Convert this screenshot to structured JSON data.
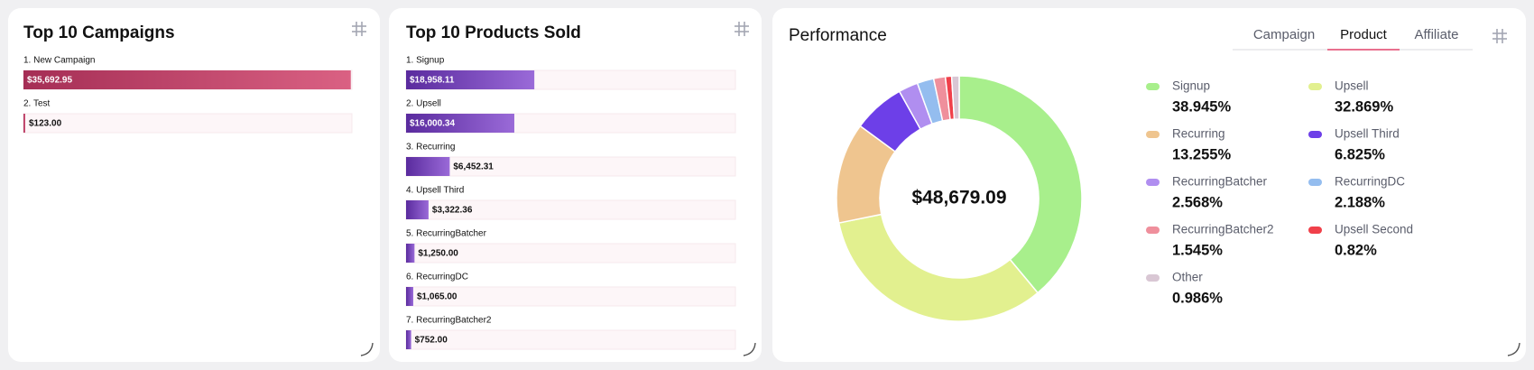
{
  "campaigns": {
    "title": "Top 10 Campaigns",
    "categories": [
      "1. New Campaign",
      "2. Test"
    ],
    "values": [
      35692.95,
      123.0
    ],
    "value_labels": [
      "$35,692.95",
      "$123.00"
    ]
  },
  "products": {
    "title": "Top 10 Products Sold",
    "categories": [
      "1. Signup",
      "2. Upsell",
      "3. Recurring",
      "4. Upsell Third",
      "5. RecurringBatcher",
      "6. RecurringDC",
      "7. RecurringBatcher2"
    ],
    "values": [
      18958.11,
      16000.34,
      6452.31,
      3322.36,
      1250.0,
      1065.0,
      752.0
    ],
    "value_labels": [
      "$18,958.11",
      "$16,000.34",
      "$6,452.31",
      "$3,322.36",
      "$1,250.00",
      "$1,065.00",
      "$752.00"
    ]
  },
  "performance": {
    "type": "donut",
    "title": "Performance",
    "tabs": [
      "Campaign",
      "Product",
      "Affiliate"
    ],
    "active_tab": 1,
    "total": 48679.09,
    "total_label": "$48,679.09",
    "series": [
      {
        "name": "Signup",
        "color": "#a8ef8c",
        "value": 38.945,
        "value_label": "38.945%"
      },
      {
        "name": "Upsell",
        "color": "#e2f08f",
        "value": 32.869,
        "value_label": "32.869%"
      },
      {
        "name": "Recurring",
        "color": "#efc58f",
        "value": 13.255,
        "value_label": "13.255%"
      },
      {
        "name": "Upsell Third",
        "color": "#6d3fe8",
        "value": 6.825,
        "value_label": "6.825%"
      },
      {
        "name": "RecurringBatcher",
        "color": "#b08ef0",
        "value": 2.568,
        "value_label": "2.568%"
      },
      {
        "name": "RecurringDC",
        "color": "#94bdef",
        "value": 2.188,
        "value_label": "2.188%"
      },
      {
        "name": "RecurringBatcher2",
        "color": "#ef8f9c",
        "value": 1.545,
        "value_label": "1.545%"
      },
      {
        "name": "Upsell Second",
        "color": "#f0404a",
        "value": 0.82,
        "value_label": "0.82%"
      },
      {
        "name": "Other",
        "color": "#d9c7d4",
        "value": 0.986,
        "value_label": "0.986%"
      }
    ]
  }
}
